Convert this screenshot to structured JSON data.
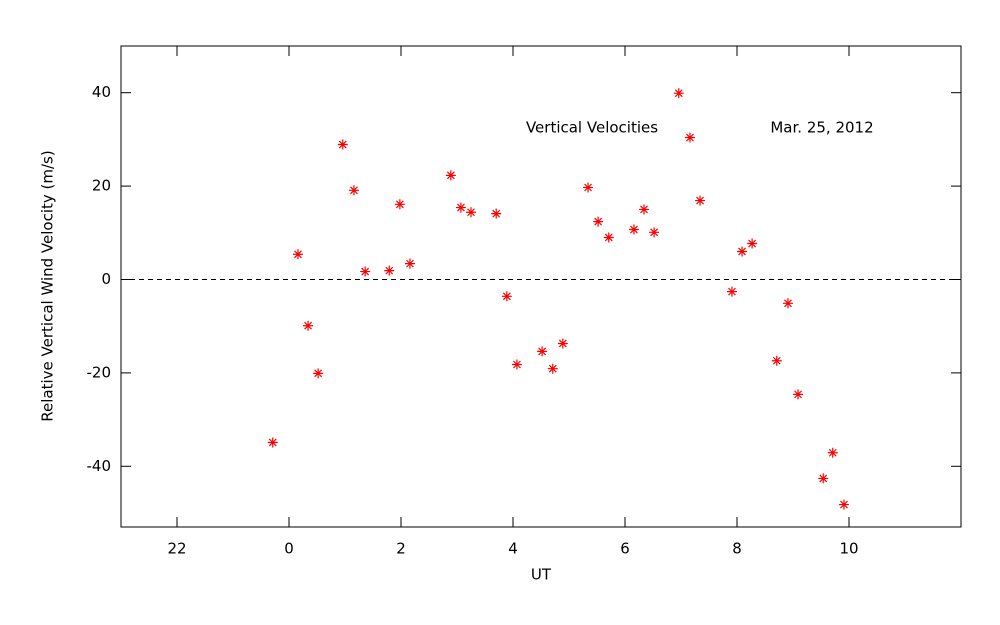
{
  "chart_data": {
    "type": "scatter",
    "xlabel": "UT",
    "ylabel": "Relative Vertical Wind Velocity (m/s)",
    "annotations": [
      "Vertical Velocities",
      "Mar. 25, 2012"
    ],
    "xlim": [
      -3,
      12
    ],
    "xticks": [
      {
        "value": -2,
        "label": "22"
      },
      0,
      2,
      4,
      6,
      8,
      10
    ],
    "ylim": [
      -53,
      50
    ],
    "yticks": [
      -40,
      -20,
      0,
      20,
      40
    ],
    "hline": 0,
    "series": [
      {
        "color": "#ff0000",
        "x": [
          -0.29,
          0.16,
          0.34,
          0.52,
          0.96,
          1.16,
          1.36,
          1.79,
          1.98,
          2.16,
          2.89,
          3.07,
          3.25,
          3.7,
          3.89,
          4.07,
          4.52,
          4.71,
          4.89,
          5.34,
          5.52,
          5.71,
          6.16,
          6.34,
          6.52,
          6.96,
          7.16,
          7.34,
          7.91,
          8.09,
          8.27,
          8.71,
          8.91,
          9.09,
          9.54,
          9.71,
          9.91
        ],
        "values": [
          -34.9,
          5.4,
          -9.9,
          -20.1,
          28.9,
          19.1,
          1.7,
          1.9,
          16.1,
          3.4,
          22.3,
          15.4,
          14.4,
          14.1,
          -3.6,
          -18.2,
          -15.4,
          -19.1,
          -13.7,
          19.7,
          12.4,
          9.0,
          10.7,
          15.0,
          10.1,
          39.9,
          30.4,
          16.9,
          -2.6,
          6.0,
          7.7,
          -17.4,
          -5.1,
          -24.6,
          -42.6,
          -37.1,
          -48.2
        ]
      }
    ]
  }
}
